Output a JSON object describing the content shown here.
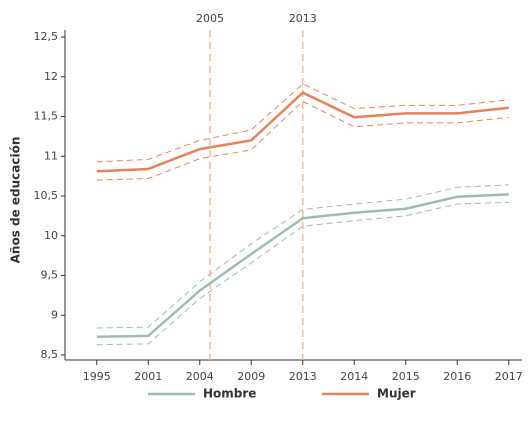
{
  "chart_data": {
    "type": "line",
    "y_label": "Años de educación",
    "categories": [
      "1995",
      "2001",
      "2004",
      "2009",
      "2013",
      "2014",
      "2015",
      "2016",
      "2017"
    ],
    "reference_lines": [
      2005,
      2013
    ],
    "series": [
      {
        "name": "Hombre",
        "color": "#9dbdb4",
        "values": [
          8.73,
          8.74,
          9.31,
          9.77,
          10.22,
          10.29,
          10.34,
          10.49,
          10.52
        ],
        "upper": [
          8.84,
          8.85,
          9.42,
          9.9,
          10.33,
          10.4,
          10.46,
          10.61,
          10.64
        ],
        "lower": [
          8.63,
          8.64,
          9.21,
          9.66,
          10.12,
          10.19,
          10.25,
          10.4,
          10.42
        ]
      },
      {
        "name": "Mujer",
        "color": "#e8825a",
        "values": [
          10.81,
          10.84,
          11.09,
          11.2,
          11.8,
          11.49,
          11.54,
          11.54,
          11.61
        ],
        "upper": [
          10.93,
          10.96,
          11.2,
          11.33,
          11.91,
          11.6,
          11.64,
          11.64,
          11.71
        ],
        "lower": [
          10.7,
          10.72,
          10.97,
          11.08,
          11.69,
          11.37,
          11.42,
          11.42,
          11.49
        ]
      }
    ],
    "ylim": [
      8.5,
      12.5
    ],
    "yticks": [
      {
        "value": 8.5,
        "label": "8,5"
      },
      9,
      {
        "value": 9.5,
        "label": "9,5"
      },
      10,
      {
        "value": 10.5,
        "label": "10,5"
      },
      11,
      {
        "value": 11.5,
        "label": "11,5"
      },
      12,
      {
        "value": 12.5,
        "label": "12,5"
      }
    ],
    "grid": false,
    "legend": "bottom"
  }
}
